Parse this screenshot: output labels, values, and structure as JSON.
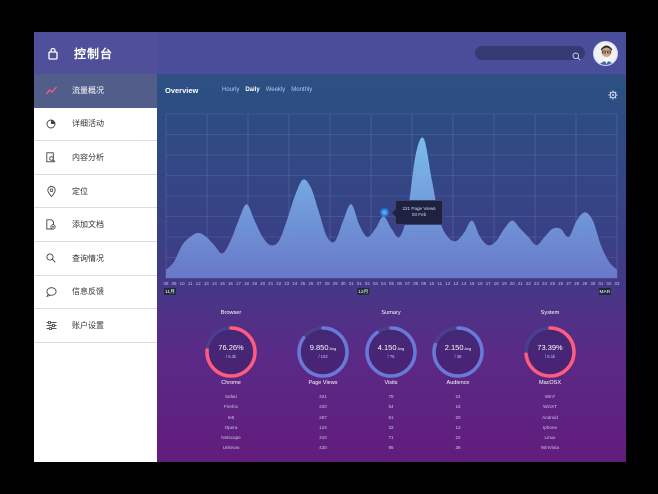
{
  "sidebar": {
    "title": "控制台",
    "items": [
      {
        "label": "流量概况",
        "icon": "line-chart-icon"
      },
      {
        "label": "详细活动",
        "icon": "pie-chart-icon"
      },
      {
        "label": "内容分析",
        "icon": "document-search-icon"
      },
      {
        "label": "定位",
        "icon": "location-pin-icon"
      },
      {
        "label": "添加文档",
        "icon": "add-document-icon"
      },
      {
        "label": "查询情况",
        "icon": "search-icon"
      },
      {
        "label": "信息反馈",
        "icon": "chat-bubble-icon"
      },
      {
        "label": "账户设置",
        "icon": "sliders-icon"
      }
    ],
    "active_index": 0
  },
  "header": {
    "search_placeholder": "",
    "avatar": "user-avatar"
  },
  "overview": {
    "title": "Overview",
    "tabs": [
      "Hourly",
      "Daily",
      "Weekly",
      "Monthly"
    ],
    "active_tab": "Daily"
  },
  "tooltip": {
    "line1": "221 Page Views",
    "line2": "03 Feb"
  },
  "chart_data": {
    "type": "area",
    "x": [
      "08",
      "09",
      "10",
      "11",
      "12",
      "13",
      "14",
      "15",
      "16",
      "17",
      "18",
      "19",
      "20",
      "21",
      "22",
      "23",
      "24",
      "25",
      "26",
      "27",
      "28",
      "29",
      "30",
      "31",
      "01",
      "02",
      "03",
      "04",
      "05",
      "06",
      "07",
      "08",
      "09",
      "10",
      "11",
      "12",
      "13",
      "14",
      "15",
      "16",
      "17",
      "18",
      "19",
      "20",
      "21",
      "22",
      "23",
      "24",
      "25",
      "26",
      "27",
      "28",
      "29",
      "30",
      "01",
      "02",
      "03"
    ],
    "values": [
      2,
      4,
      8,
      10,
      11,
      10,
      8,
      6,
      9,
      14,
      18,
      14,
      10,
      8,
      9,
      14,
      20,
      24,
      22,
      16,
      10,
      9,
      14,
      18,
      13,
      10,
      12,
      15,
      12,
      10,
      16,
      30,
      34,
      24,
      14,
      10,
      9,
      11,
      14,
      10,
      8,
      9,
      12,
      14,
      12,
      10,
      8,
      10,
      12,
      12,
      10,
      14,
      16,
      14,
      8,
      4,
      2
    ],
    "ylim": [
      0,
      40
    ],
    "grid": true,
    "month_markers": [
      {
        "label": "11月",
        "index": 0
      },
      {
        "label": "12月",
        "index": 24
      },
      {
        "label": "MAR",
        "index": 54
      }
    ],
    "highlight_index": 27
  },
  "stats": {
    "browser": {
      "label": "Browser",
      "value": "76.26%",
      "sub": "/ 6.3k",
      "percent": 76.26,
      "title": "Chrome",
      "list": [
        "Safari",
        "Firefox",
        "Ie8",
        "Opera",
        "Netscape",
        "Unknow"
      ]
    },
    "summary": {
      "label": "Sumary",
      "cols": [
        {
          "value": "9.850",
          "avg": "Avg",
          "sub": "/ 102",
          "percent": 85,
          "title": "Page Views",
          "list": [
            "321",
            "220",
            "267",
            "124",
            "310",
            "430"
          ]
        },
        {
          "value": "4.150",
          "avg": "Avg",
          "sub": "/ 76",
          "percent": 90,
          "title": "Visits",
          "list": [
            "78",
            "54",
            "61",
            "32",
            "71",
            "95"
          ]
        },
        {
          "value": "2.150",
          "avg": "Avg",
          "sub": "/ 38",
          "percent": 80,
          "title": "Audience",
          "list": [
            "24",
            "16",
            "20",
            "12",
            "22",
            "36"
          ]
        }
      ]
    },
    "system": {
      "label": "System",
      "value": "73.39%",
      "sub": "/ 6.1k",
      "percent": 73.39,
      "title": "MacOSX",
      "list": [
        "Win7",
        "WinXT",
        "Android",
        "Iphone",
        "Linux",
        "WinVista"
      ]
    }
  },
  "colors": {
    "sidebar_header": "#4f4f9a",
    "active_item": "#525d8a",
    "ring_pink": "#ff5b7f",
    "ring_blue": "#6a78d8"
  }
}
